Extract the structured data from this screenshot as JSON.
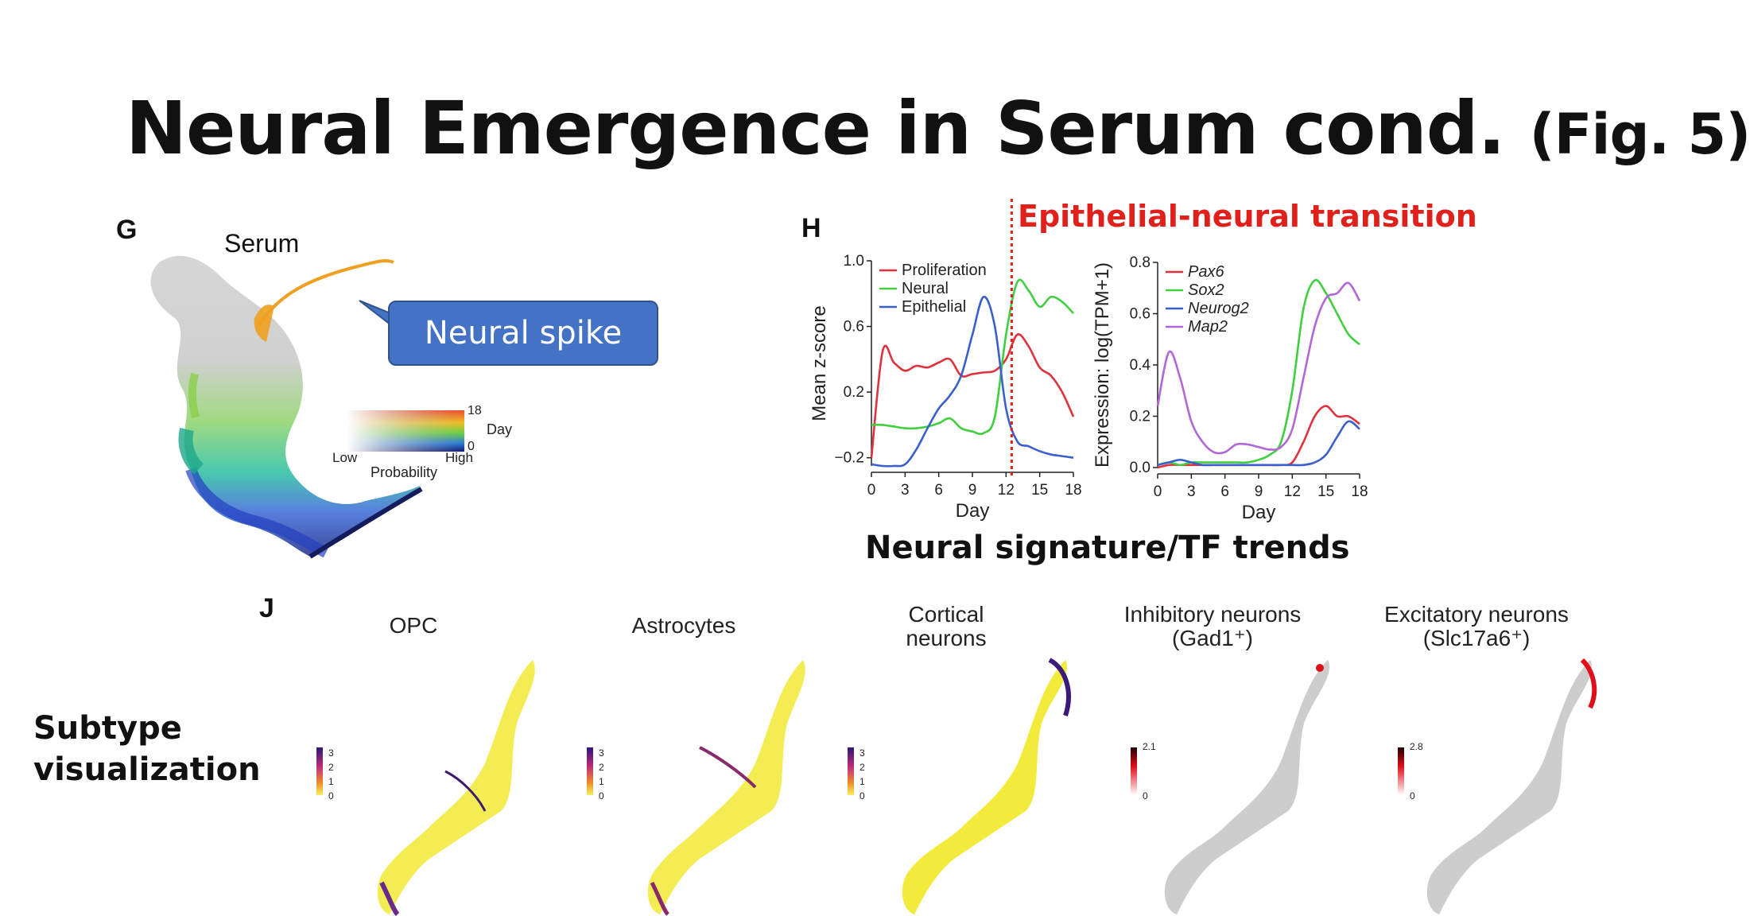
{
  "slide": {
    "title": "Neural Emergence in Serum cond.",
    "title_suffix": "(Fig. 5)",
    "callout": "Neural spike",
    "transition_label": "Epithelial-neural transition",
    "caption_trends": "Neural signature/TF trends",
    "subtype_label_line1": "Subtype",
    "subtype_label_line2": "visualization"
  },
  "panel_g": {
    "letter": "G",
    "title": "Serum",
    "colorbar": {
      "max_label": "18",
      "min_label": "0",
      "day_label": "Day",
      "low_label": "Low",
      "high_label": "High",
      "prob_label": "Probability"
    }
  },
  "panel_h": {
    "letter": "H"
  },
  "panel_j": {
    "letter": "J",
    "subpanels": [
      {
        "title": "OPC",
        "scale": [
          "3",
          "2",
          "1",
          "0"
        ]
      },
      {
        "title": "Astrocytes",
        "scale": [
          "3",
          "2",
          "1",
          "0"
        ]
      },
      {
        "title_line1": "Cortical",
        "title_line2": "neurons",
        "scale": [
          "3",
          "2",
          "1",
          "0"
        ]
      },
      {
        "title_line1": "Inhibitory neurons",
        "title_line2": "(Gad1⁺)",
        "scale": [
          "2.1",
          "0"
        ]
      },
      {
        "title_line1": "Excitatory neurons",
        "title_line2": "(Slc17a6⁺)",
        "scale": [
          "2.8",
          "0"
        ]
      }
    ]
  },
  "chart_data": [
    {
      "type": "line",
      "xlabel": "Day",
      "ylabel": "Mean z-score",
      "xlim": [
        0,
        18
      ],
      "ylim": [
        -0.25,
        1.0
      ],
      "xticks": [
        "0",
        "3",
        "6",
        "9",
        "12",
        "15",
        "18"
      ],
      "yticks": [
        "−0.2",
        "0.2",
        "0.6",
        "1.0"
      ],
      "legend_position": "top-left",
      "x": [
        0,
        1,
        2,
        3,
        4,
        5,
        6,
        7,
        8,
        9,
        10,
        11,
        12,
        13,
        14,
        15,
        16,
        17,
        18
      ],
      "series": [
        {
          "name": "Proliferation",
          "color": "#e0323c",
          "values": [
            -0.2,
            0.45,
            0.38,
            0.33,
            0.36,
            0.35,
            0.38,
            0.4,
            0.3,
            0.31,
            0.32,
            0.33,
            0.4,
            0.55,
            0.48,
            0.35,
            0.3,
            0.2,
            0.05
          ]
        },
        {
          "name": "Neural",
          "color": "#3fcf3f",
          "values": [
            0.0,
            0.0,
            -0.01,
            -0.02,
            -0.02,
            -0.01,
            0.01,
            0.04,
            -0.02,
            -0.04,
            -0.05,
            0.05,
            0.55,
            0.87,
            0.82,
            0.72,
            0.78,
            0.75,
            0.68
          ]
        },
        {
          "name": "Epithelial",
          "color": "#3a5fcf",
          "values": [
            -0.24,
            -0.25,
            -0.25,
            -0.24,
            -0.15,
            -0.02,
            0.1,
            0.18,
            0.3,
            0.55,
            0.78,
            0.6,
            0.1,
            -0.1,
            -0.13,
            -0.16,
            -0.18,
            -0.19,
            -0.2
          ]
        }
      ],
      "annotation": {
        "type": "vline",
        "x": 12.5,
        "color": "#e0201b",
        "label": "Epithelial-neural transition"
      }
    },
    {
      "type": "line",
      "xlabel": "Day",
      "ylabel": "Expression: log(TPM+1)",
      "xlim": [
        0,
        18
      ],
      "ylim": [
        0,
        0.8
      ],
      "xticks": [
        "0",
        "3",
        "6",
        "9",
        "12",
        "15",
        "18"
      ],
      "yticks": [
        "0.0",
        "0.2",
        "0.4",
        "0.6",
        "0.8"
      ],
      "legend_position": "top-left",
      "x": [
        0,
        1,
        2,
        3,
        4,
        5,
        6,
        7,
        8,
        9,
        10,
        11,
        12,
        13,
        14,
        15,
        16,
        17,
        18
      ],
      "series": [
        {
          "name": "Pax6",
          "color": "#e0323c",
          "values": [
            0.0,
            0.01,
            0.01,
            0.01,
            0.01,
            0.01,
            0.01,
            0.01,
            0.01,
            0.01,
            0.01,
            0.01,
            0.02,
            0.1,
            0.2,
            0.24,
            0.2,
            0.2,
            0.17
          ]
        },
        {
          "name": "Sox2",
          "color": "#3fcf3f",
          "values": [
            0.01,
            0.02,
            0.01,
            0.02,
            0.02,
            0.02,
            0.02,
            0.02,
            0.02,
            0.03,
            0.05,
            0.1,
            0.3,
            0.62,
            0.73,
            0.68,
            0.6,
            0.52,
            0.48
          ]
        },
        {
          "name": "Neurog2",
          "color": "#3a5fcf",
          "values": [
            0.01,
            0.02,
            0.03,
            0.02,
            0.01,
            0.01,
            0.01,
            0.01,
            0.01,
            0.01,
            0.01,
            0.01,
            0.01,
            0.01,
            0.02,
            0.05,
            0.12,
            0.18,
            0.15
          ]
        },
        {
          "name": "Map2",
          "color": "#b266d8",
          "values": [
            0.24,
            0.45,
            0.35,
            0.18,
            0.1,
            0.06,
            0.06,
            0.09,
            0.09,
            0.08,
            0.07,
            0.08,
            0.15,
            0.35,
            0.55,
            0.66,
            0.68,
            0.72,
            0.65
          ]
        }
      ]
    }
  ]
}
